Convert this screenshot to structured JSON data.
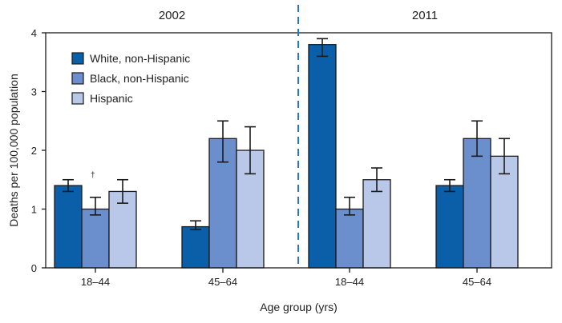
{
  "chart_data": {
    "type": "bar",
    "panels": [
      {
        "label": "2002",
        "categories": [
          "18–44",
          "45–64"
        ]
      },
      {
        "label": "2011",
        "categories": [
          "18–44",
          "45–64"
        ]
      }
    ],
    "series": [
      {
        "name": "White, non-Hispanic",
        "color": "#0a5fa8",
        "values": [
          [
            1.4,
            0.7
          ],
          [
            3.8,
            1.4
          ]
        ],
        "ci_low": [
          [
            1.3,
            0.65
          ],
          [
            3.6,
            1.3
          ]
        ],
        "ci_high": [
          [
            1.5,
            0.8
          ],
          [
            3.9,
            1.5
          ]
        ]
      },
      {
        "name": "Black, non-Hispanic",
        "color": "#6b8fcc",
        "values": [
          [
            1.0,
            2.2
          ],
          [
            1.0,
            2.2
          ]
        ],
        "ci_low": [
          [
            0.9,
            1.8
          ],
          [
            0.9,
            1.9
          ]
        ],
        "ci_high": [
          [
            1.2,
            2.5
          ],
          [
            1.2,
            2.5
          ]
        ]
      },
      {
        "name": "Hispanic",
        "color": "#b9c8e8",
        "values": [
          [
            1.3,
            2.0
          ],
          [
            1.5,
            1.9
          ]
        ],
        "ci_low": [
          [
            1.1,
            1.6
          ],
          [
            1.3,
            1.6
          ]
        ],
        "ci_high": [
          [
            1.5,
            2.4
          ],
          [
            1.7,
            2.2
          ]
        ]
      }
    ],
    "yticks": [
      0,
      1,
      2,
      3,
      4
    ],
    "ylim": [
      0,
      4
    ],
    "xlabel": "Age group (yrs)",
    "ylabel": "Deaths per 100,000 population",
    "annotation": "†",
    "legend_position": "top-left",
    "grid": false
  }
}
